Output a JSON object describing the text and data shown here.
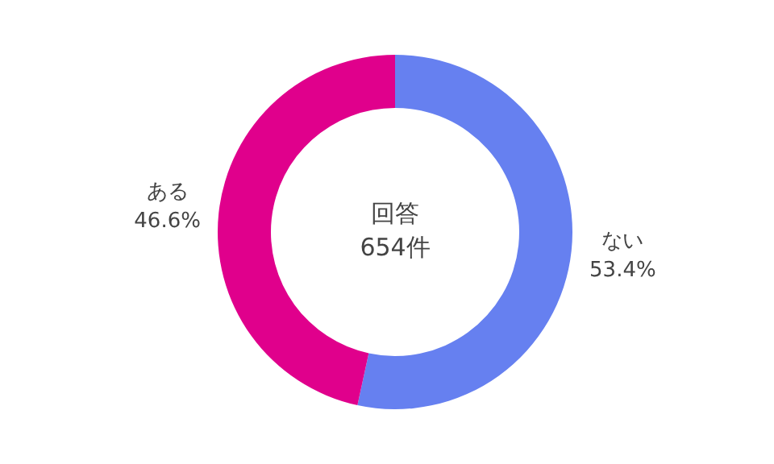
{
  "chart_data": {
    "type": "donut",
    "categories": [
      "ない",
      "ある"
    ],
    "values": [
      53.4,
      46.6
    ],
    "colors": [
      "#6680f0",
      "#e0008c"
    ],
    "value_labels": [
      "53.4%",
      "46.6%"
    ],
    "annotations": [
      "回答",
      "654件"
    ],
    "legend": false
  }
}
